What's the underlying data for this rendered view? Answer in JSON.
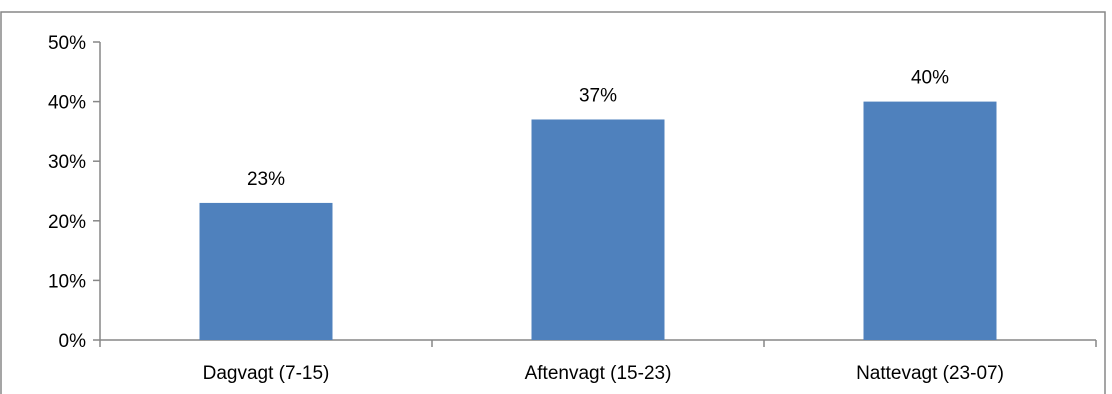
{
  "chart_data": {
    "type": "bar",
    "title_partial": "",
    "categories": [
      "Dagvagt (7-15)",
      "Aftenvagt (15-23)",
      "Nattevagt (23-07)"
    ],
    "values": [
      23,
      37,
      40
    ],
    "data_labels": [
      "23%",
      "37%",
      "40%"
    ],
    "y_ticks": [
      "0%",
      "10%",
      "20%",
      "30%",
      "40%",
      "50%"
    ],
    "ylim": [
      0,
      50
    ],
    "xlabel": "",
    "ylabel": "",
    "grid": false,
    "legend": "none",
    "bar_color": "#4F81BD"
  }
}
